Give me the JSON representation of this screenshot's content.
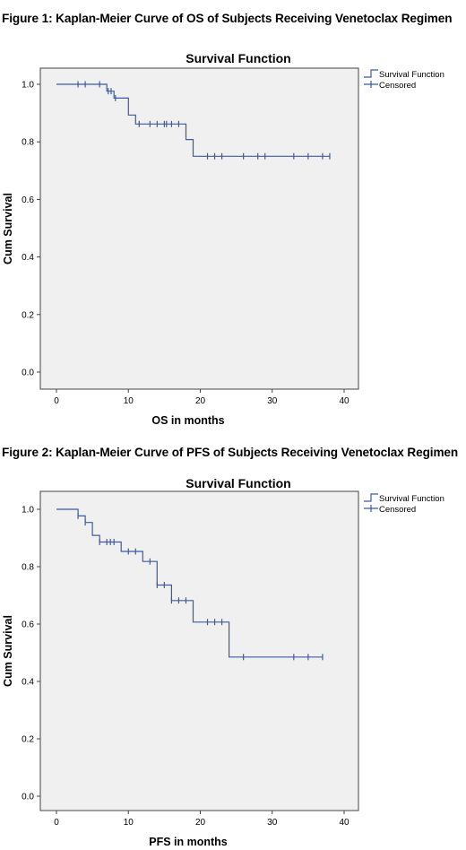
{
  "figures": [
    {
      "caption": "Figure 1: Kaplan-Meier Curve of OS of Subjects Receiving Venetoclax Regimen"
    },
    {
      "caption": "Figure 2: Kaplan-Meier Curve of PFS of Subjects Receiving Venetoclax Regimen"
    }
  ],
  "chart_data": [
    {
      "type": "line",
      "title": "Survival Function",
      "xlabel": "OS in months",
      "ylabel": "Cum Survival",
      "xlim": [
        0,
        40
      ],
      "ylim": [
        0.0,
        1.0
      ],
      "xticks": [
        "0",
        "10",
        "20",
        "30",
        "40"
      ],
      "yticks": [
        "0.0",
        "0.2",
        "0.4",
        "0.6",
        "0.8",
        "1.0"
      ],
      "legend": [
        "Survival Function",
        "Censored"
      ],
      "legend_position": "top-right",
      "grid": false,
      "color": "#3b5ba8",
      "series": [
        {
          "name": "Survival Function",
          "steps": [
            [
              0,
              1.0
            ],
            [
              7,
              0.976
            ],
            [
              8,
              0.952
            ],
            [
              10,
              0.893
            ],
            [
              11,
              0.862
            ],
            [
              18,
              0.808
            ],
            [
              19,
              0.75
            ],
            [
              38,
              0.75
            ]
          ]
        },
        {
          "name": "Censored",
          "points": [
            [
              3,
              1.0
            ],
            [
              4,
              1.0
            ],
            [
              6,
              1.0
            ],
            [
              7.2,
              0.976
            ],
            [
              7.6,
              0.976
            ],
            [
              8.2,
              0.952
            ],
            [
              11.5,
              0.862
            ],
            [
              13,
              0.862
            ],
            [
              14,
              0.862
            ],
            [
              15,
              0.862
            ],
            [
              15.3,
              0.862
            ],
            [
              16,
              0.862
            ],
            [
              17,
              0.862
            ],
            [
              21,
              0.75
            ],
            [
              22,
              0.75
            ],
            [
              23,
              0.75
            ],
            [
              26,
              0.75
            ],
            [
              28,
              0.75
            ],
            [
              29,
              0.75
            ],
            [
              33,
              0.75
            ],
            [
              35,
              0.75
            ],
            [
              37,
              0.75
            ],
            [
              38,
              0.75
            ]
          ]
        }
      ]
    },
    {
      "type": "line",
      "title": "Survival Function",
      "xlabel": "PFS in months",
      "ylabel": "Cum Survival",
      "xlim": [
        0,
        40
      ],
      "ylim": [
        0.0,
        1.0
      ],
      "xticks": [
        "0",
        "10",
        "20",
        "30",
        "40"
      ],
      "yticks": [
        "0.0",
        "0.2",
        "0.4",
        "0.6",
        "0.8",
        "1.0"
      ],
      "legend": [
        "Survival Function",
        "Censored"
      ],
      "legend_position": "top-right",
      "grid": false,
      "color": "#3b5ba8",
      "series": [
        {
          "name": "Survival Function",
          "steps": [
            [
              0,
              1.0
            ],
            [
              3,
              0.977
            ],
            [
              4,
              0.954
            ],
            [
              5,
              0.909
            ],
            [
              6,
              0.886
            ],
            [
              9,
              0.853
            ],
            [
              12,
              0.818
            ],
            [
              14,
              0.736
            ],
            [
              16,
              0.682
            ],
            [
              19,
              0.607
            ],
            [
              24,
              0.485
            ],
            [
              37,
              0.485
            ]
          ]
        },
        {
          "name": "Censored",
          "points": [
            [
              3,
              0.977
            ],
            [
              4,
              0.954
            ],
            [
              6,
              0.886
            ],
            [
              7,
              0.886
            ],
            [
              7.5,
              0.886
            ],
            [
              8,
              0.886
            ],
            [
              10,
              0.853
            ],
            [
              11,
              0.853
            ],
            [
              13,
              0.818
            ],
            [
              14,
              0.736
            ],
            [
              15,
              0.736
            ],
            [
              16,
              0.682
            ],
            [
              17,
              0.682
            ],
            [
              18,
              0.682
            ],
            [
              21,
              0.607
            ],
            [
              22,
              0.607
            ],
            [
              23,
              0.607
            ],
            [
              26,
              0.485
            ],
            [
              33,
              0.485
            ],
            [
              35,
              0.485
            ],
            [
              37,
              0.485
            ]
          ]
        }
      ]
    }
  ]
}
